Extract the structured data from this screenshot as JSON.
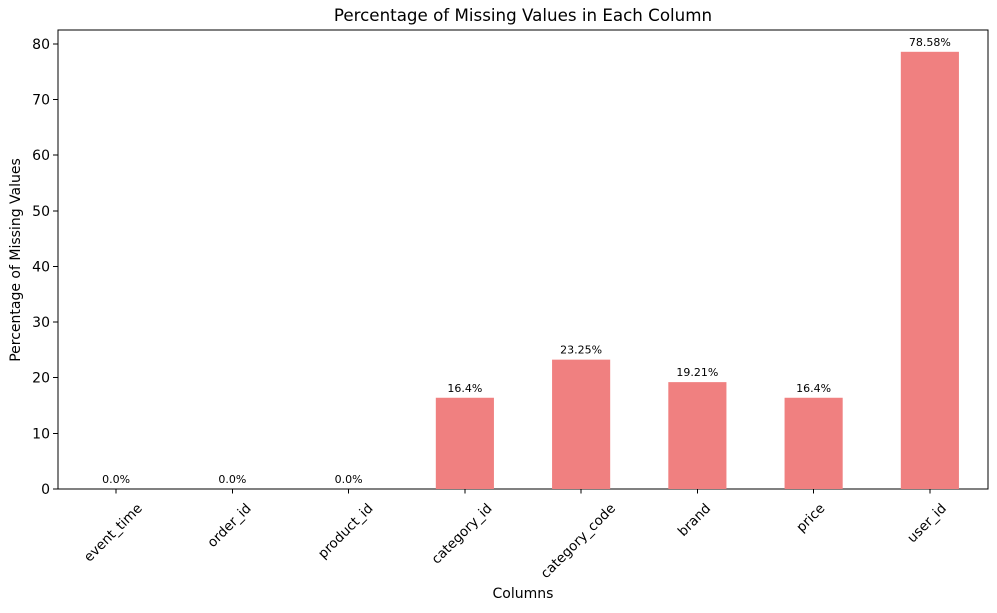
{
  "chart_data": {
    "type": "bar",
    "title": "Percentage of Missing Values in Each Column",
    "xlabel": "Columns",
    "ylabel": "Percentage of Missing Values",
    "categories": [
      "event_time",
      "order_id",
      "product_id",
      "category_id",
      "category_code",
      "brand",
      "price",
      "user_id"
    ],
    "values": [
      0.0,
      0.0,
      0.0,
      16.4,
      23.25,
      19.21,
      16.4,
      78.58
    ],
    "value_labels": [
      "0.0%",
      "0.0%",
      "0.0%",
      "16.4%",
      "23.25%",
      "19.21%",
      "16.4%",
      "78.58%"
    ],
    "yticks": [
      "0",
      "10",
      "20",
      "30",
      "40",
      "50",
      "60",
      "70",
      "80"
    ],
    "ytick_values": [
      0,
      10,
      20,
      30,
      40,
      50,
      60,
      70,
      80
    ],
    "ylim": [
      0,
      82.5
    ],
    "x_tick_rotation": 45,
    "bar_width_fraction": 0.5,
    "grid": false,
    "legend": "none",
    "bar_color": "#F08080",
    "axis_color": "#000000",
    "text_color": "#000000",
    "background": "#FFFFFF"
  }
}
